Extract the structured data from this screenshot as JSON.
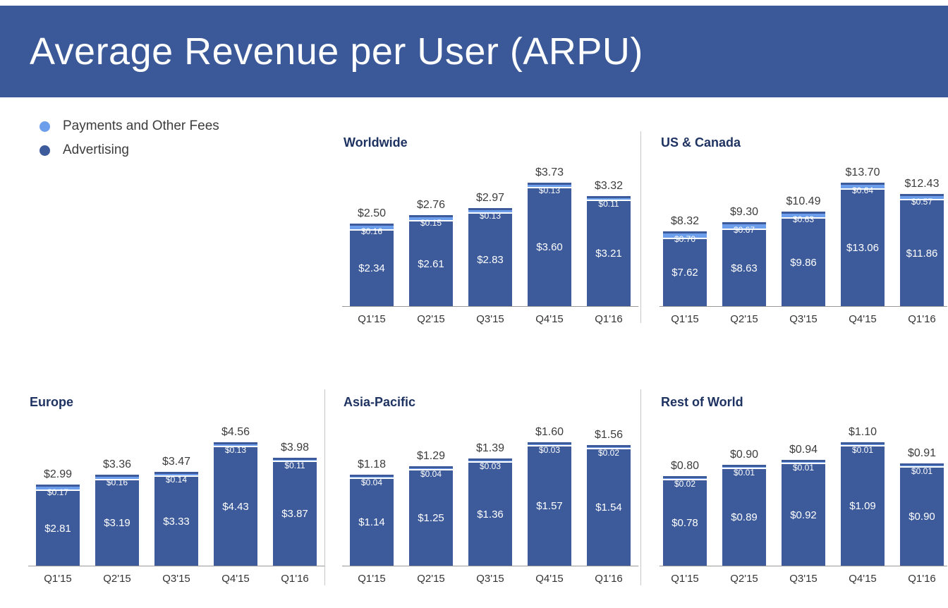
{
  "header": {
    "title": "Average Revenue per User (ARPU)"
  },
  "legend": {
    "items": [
      {
        "label": "Payments and Other Fees",
        "color": "#6d9eeb"
      },
      {
        "label": "Advertising",
        "color": "#3d5b9b"
      }
    ]
  },
  "colors": {
    "header_bg": "#3b5998",
    "advertising": "#3d5b9b",
    "payments": "#6d9eeb",
    "chart_title_text": "#1f3363",
    "total_label_text": "#3c3c3c",
    "axis_line": "#9a9a9a",
    "divider_line": "#c9c9c9"
  },
  "chart_data": [
    {
      "type": "bar",
      "stacked": true,
      "title": "Worldwide",
      "categories": [
        "Q1'15",
        "Q2'15",
        "Q3'15",
        "Q4'15",
        "Q1'16"
      ],
      "series": [
        {
          "name": "Advertising",
          "values": [
            2.34,
            2.61,
            2.83,
            3.6,
            3.21
          ]
        },
        {
          "name": "Payments and Other Fees",
          "values": [
            0.16,
            0.15,
            0.13,
            0.13,
            0.11
          ]
        }
      ],
      "totals": [
        2.5,
        2.76,
        2.97,
        3.73,
        3.32
      ],
      "value_prefix": "$",
      "xlabel": "",
      "ylabel": "",
      "grid": false,
      "legend_position": "none"
    },
    {
      "type": "bar",
      "stacked": true,
      "title": "US & Canada",
      "categories": [
        "Q1'15",
        "Q2'15",
        "Q3'15",
        "Q4'15",
        "Q1'16"
      ],
      "series": [
        {
          "name": "Advertising",
          "values": [
            7.62,
            8.63,
            9.86,
            13.06,
            11.86
          ]
        },
        {
          "name": "Payments and Other Fees",
          "values": [
            0.7,
            0.67,
            0.63,
            0.64,
            0.57
          ]
        }
      ],
      "totals": [
        8.32,
        9.3,
        10.49,
        13.7,
        12.43
      ],
      "value_prefix": "$",
      "xlabel": "",
      "ylabel": "",
      "grid": false,
      "legend_position": "none"
    },
    {
      "type": "bar",
      "stacked": true,
      "title": "Europe",
      "categories": [
        "Q1'15",
        "Q2'15",
        "Q3'15",
        "Q4'15",
        "Q1'16"
      ],
      "series": [
        {
          "name": "Advertising",
          "values": [
            2.81,
            3.19,
            3.33,
            4.43,
            3.87
          ]
        },
        {
          "name": "Payments and Other Fees",
          "values": [
            0.17,
            0.16,
            0.14,
            0.13,
            0.11
          ]
        }
      ],
      "totals": [
        2.99,
        3.36,
        3.47,
        4.56,
        3.98
      ],
      "value_prefix": "$",
      "xlabel": "",
      "ylabel": "",
      "grid": false,
      "legend_position": "none"
    },
    {
      "type": "bar",
      "stacked": true,
      "title": "Asia-Pacific",
      "categories": [
        "Q1'15",
        "Q2'15",
        "Q3'15",
        "Q4'15",
        "Q1'16"
      ],
      "series": [
        {
          "name": "Advertising",
          "values": [
            1.14,
            1.25,
            1.36,
            1.57,
            1.54
          ]
        },
        {
          "name": "Payments and Other Fees",
          "values": [
            0.04,
            0.04,
            0.03,
            0.03,
            0.02
          ]
        }
      ],
      "totals": [
        1.18,
        1.29,
        1.39,
        1.6,
        1.56
      ],
      "value_prefix": "$",
      "xlabel": "",
      "ylabel": "",
      "grid": false,
      "legend_position": "none"
    },
    {
      "type": "bar",
      "stacked": true,
      "title": "Rest of World",
      "categories": [
        "Q1'15",
        "Q2'15",
        "Q3'15",
        "Q4'15",
        "Q1'16"
      ],
      "series": [
        {
          "name": "Advertising",
          "values": [
            0.78,
            0.89,
            0.92,
            1.09,
            0.9
          ]
        },
        {
          "name": "Payments and Other Fees",
          "values": [
            0.02,
            0.01,
            0.01,
            0.01,
            0.01
          ]
        }
      ],
      "totals": [
        0.8,
        0.9,
        0.94,
        1.1,
        0.91
      ],
      "value_prefix": "$",
      "xlabel": "",
      "ylabel": "",
      "grid": false,
      "legend_position": "none"
    }
  ]
}
